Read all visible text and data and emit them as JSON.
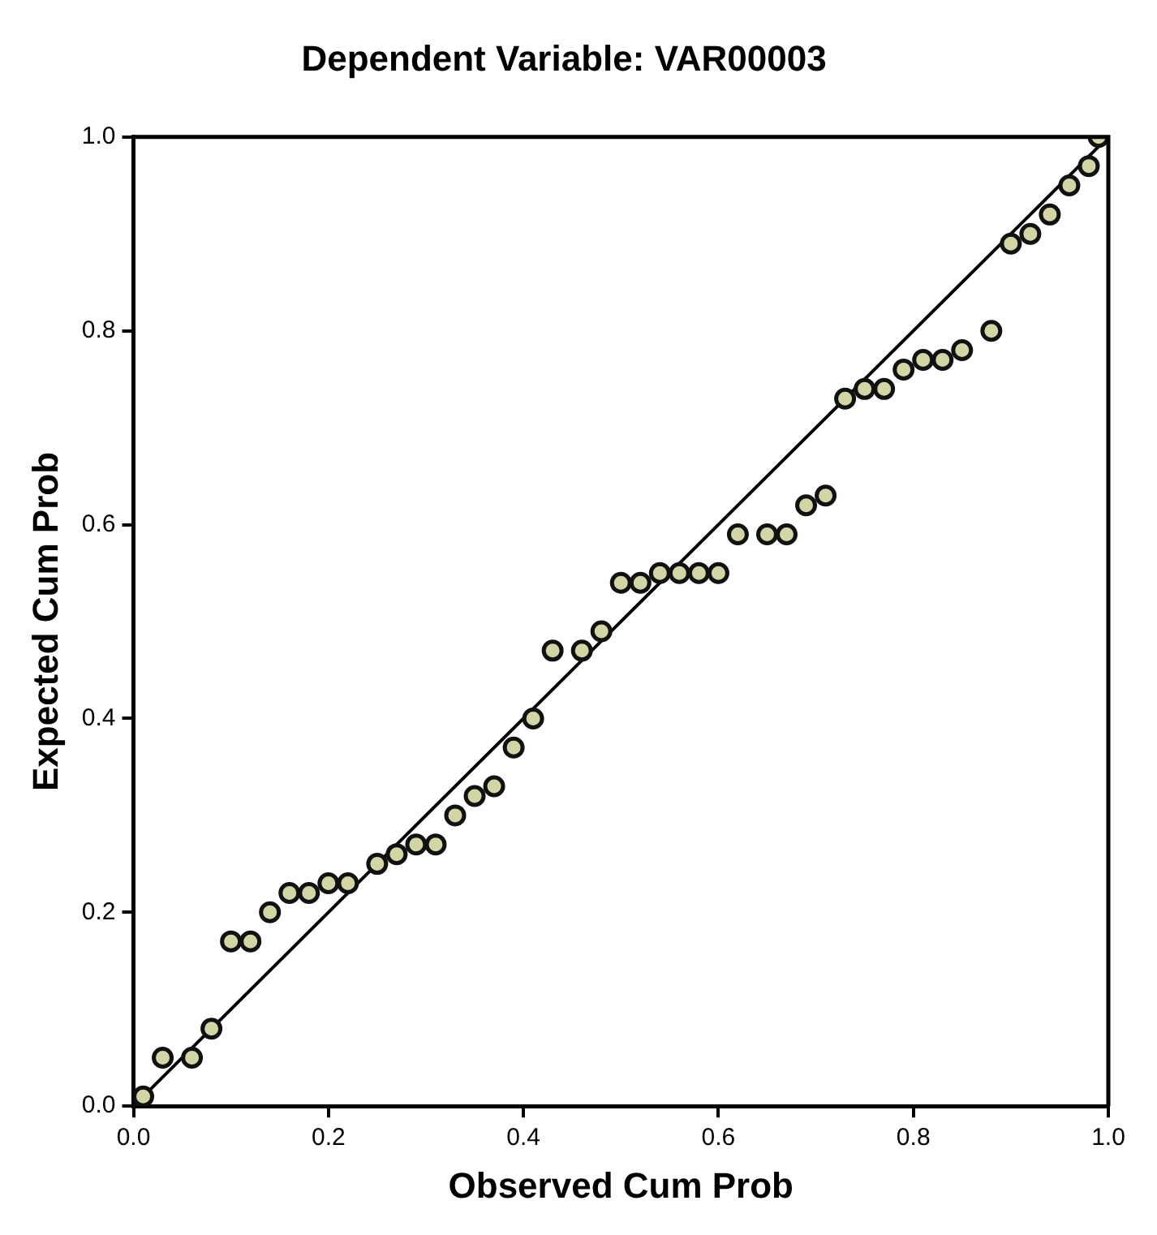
{
  "chart_data": {
    "type": "scatter",
    "title": "Dependent Variable: VAR00003",
    "xlabel": "Observed Cum Prob",
    "ylabel": "Expected Cum Prob",
    "xlim": [
      0,
      1
    ],
    "ylim": [
      0,
      1
    ],
    "xticks": [
      {
        "value": 0,
        "label": "0.0"
      },
      {
        "value": 0.2,
        "label": "0.2"
      },
      {
        "value": 0.4,
        "label": "0.4"
      },
      {
        "value": 0.6,
        "label": "0.6"
      },
      {
        "value": 0.8,
        "label": "0.8"
      },
      {
        "value": 1,
        "label": "1.0"
      }
    ],
    "yticks": [
      {
        "value": 0,
        "label": "0.0"
      },
      {
        "value": 0.2,
        "label": "0.2"
      },
      {
        "value": 0.4,
        "label": "0.4"
      },
      {
        "value": 0.6,
        "label": "0.6"
      },
      {
        "value": 0.8,
        "label": "0.8"
      },
      {
        "value": 1,
        "label": "1.0"
      }
    ],
    "grid": false,
    "legend": false,
    "marker": "circle",
    "series": [
      {
        "type": "scatter",
        "color": "#d3d6a4",
        "x": [
          0.01,
          0.03,
          0.06,
          0.08,
          0.1,
          0.12,
          0.14,
          0.16,
          0.18,
          0.2,
          0.22,
          0.25,
          0.27,
          0.29,
          0.31,
          0.33,
          0.35,
          0.37,
          0.39,
          0.41,
          0.43,
          0.46,
          0.48,
          0.5,
          0.52,
          0.54,
          0.56,
          0.58,
          0.6,
          0.62,
          0.65,
          0.67,
          0.69,
          0.71,
          0.73,
          0.75,
          0.77,
          0.79,
          0.81,
          0.83,
          0.85,
          0.88,
          0.9,
          0.92,
          0.94,
          0.96,
          0.98,
          0.99
        ],
        "values": [
          0.01,
          0.05,
          0.05,
          0.08,
          0.17,
          0.17,
          0.2,
          0.22,
          0.22,
          0.23,
          0.23,
          0.25,
          0.26,
          0.27,
          0.27,
          0.3,
          0.32,
          0.33,
          0.37,
          0.4,
          0.47,
          0.47,
          0.49,
          0.54,
          0.54,
          0.55,
          0.55,
          0.55,
          0.55,
          0.59,
          0.59,
          0.59,
          0.62,
          0.63,
          0.73,
          0.74,
          0.74,
          0.76,
          0.77,
          0.77,
          0.78,
          0.8,
          0.89,
          0.9,
          0.92,
          0.95,
          0.97,
          1.0
        ]
      },
      {
        "type": "line",
        "color": "#000000",
        "x": [
          0,
          1
        ],
        "values": [
          0,
          1
        ],
        "marker": "none"
      }
    ]
  }
}
